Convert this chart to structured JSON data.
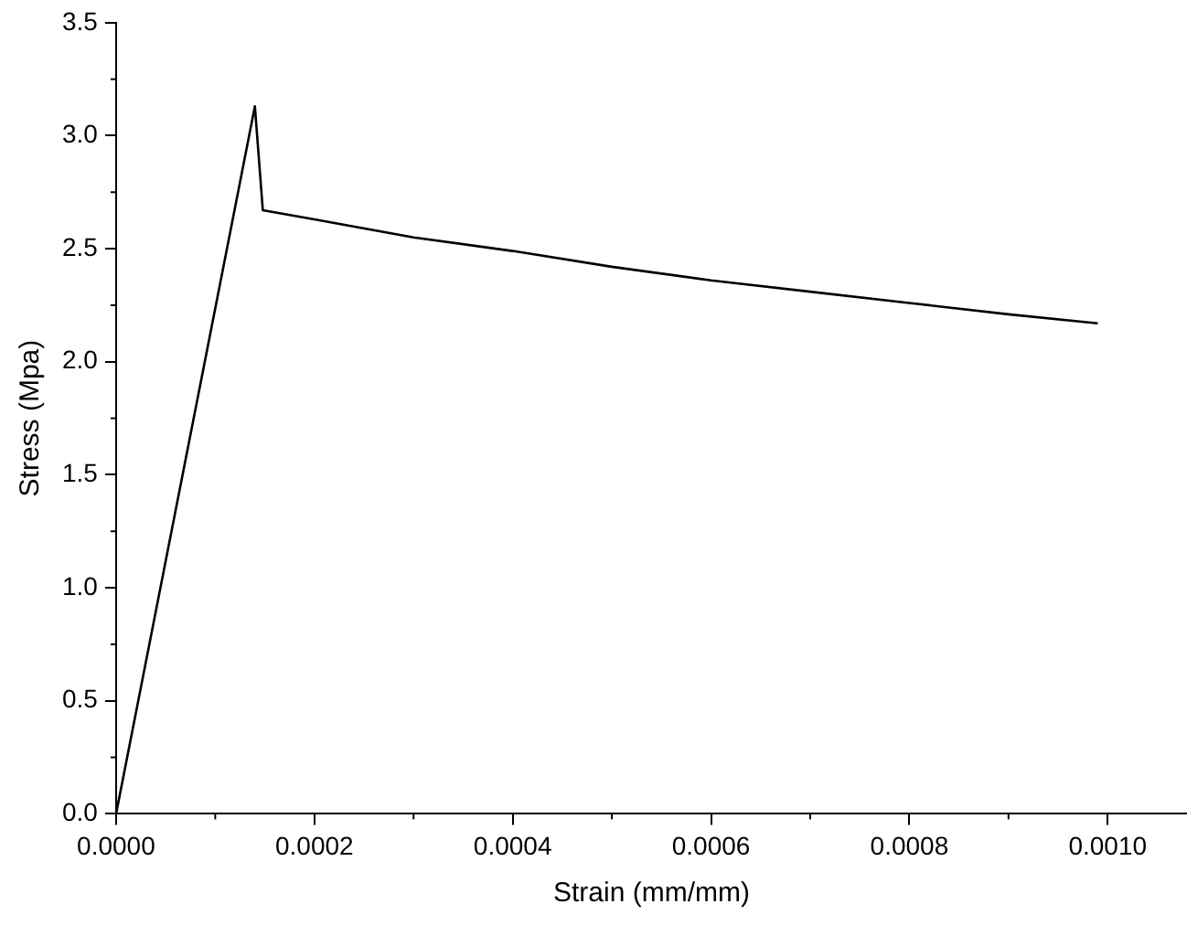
{
  "chart_data": {
    "type": "line",
    "xlabel": "Strain (mm/mm)",
    "ylabel": "Stress (Mpa)",
    "x": [
      0,
      0.00014,
      0.000148,
      0.0002,
      0.0003,
      0.0004,
      0.0005,
      0.0006,
      0.0007,
      0.0008,
      0.0009,
      0.00099
    ],
    "series": [
      {
        "color": "#000000",
        "values": [
          0,
          3.13,
          2.67,
          2.63,
          2.55,
          2.49,
          2.42,
          2.36,
          2.31,
          2.26,
          2.21,
          2.17
        ]
      }
    ],
    "xlim": [
      0,
      0.00108
    ],
    "xticks": [
      {
        "value": 0,
        "label": "0.0000"
      },
      {
        "value": 0.0002,
        "label": "0.0002"
      },
      {
        "value": 0.0004,
        "label": "0.0004"
      },
      {
        "value": 0.0006,
        "label": "0.0006"
      },
      {
        "value": 0.0008,
        "label": "0.0008"
      },
      {
        "value": 0.001,
        "label": "0.0010"
      }
    ],
    "ylim": [
      0,
      3.5
    ],
    "yticks": [
      {
        "value": 0,
        "label": "0.0"
      },
      {
        "value": 0.5,
        "label": "0.5"
      },
      {
        "value": 1,
        "label": "1.0"
      },
      {
        "value": 1.5,
        "label": "1.5"
      },
      {
        "value": 2,
        "label": "2.0"
      },
      {
        "value": 2.5,
        "label": "2.5"
      },
      {
        "value": 3,
        "label": "3.0"
      },
      {
        "value": 3.5,
        "label": "3.5"
      }
    ],
    "grid": false,
    "legend": false,
    "marker": "none",
    "line_style": "solid"
  }
}
